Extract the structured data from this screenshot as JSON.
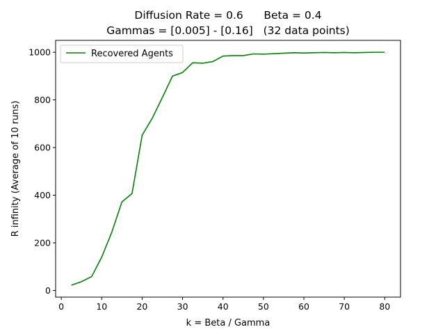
{
  "chart_data": {
    "type": "line",
    "title": "Diffusion Rate = 0.6      Beta = 0.4",
    "subtitle": "Gammas = [0.005] - [0.16]   (32 data points)",
    "xlabel": "k = Beta / Gamma",
    "ylabel": "R infinity (Average of 10 runs)",
    "xlim": [
      -1.4,
      83.9
    ],
    "ylim": [
      -28,
      1050
    ],
    "xticks": [
      0,
      10,
      20,
      30,
      40,
      50,
      60,
      70,
      80
    ],
    "yticks": [
      0,
      200,
      400,
      600,
      800,
      1000
    ],
    "grid": false,
    "legend_position": "top-left",
    "series": [
      {
        "name": "Recovered Agents",
        "color": "#008000",
        "x": [
          2.5,
          5,
          7.5,
          10,
          12.5,
          15,
          17.5,
          20,
          22.5,
          25,
          27.5,
          30,
          32.5,
          35,
          37.5,
          40,
          42.5,
          45,
          47.5,
          50,
          52.5,
          55,
          57.5,
          60,
          62.5,
          65,
          67.5,
          70,
          72.5,
          75,
          77.5,
          80
        ],
        "y": [
          22,
          37,
          58,
          140,
          245,
          372,
          407,
          652,
          723,
          810,
          900,
          915,
          956,
          954,
          961,
          984,
          986,
          986,
          993,
          992,
          994,
          996,
          998,
          997,
          998,
          999,
          998,
          999,
          998,
          999,
          1000,
          1000
        ]
      }
    ]
  }
}
